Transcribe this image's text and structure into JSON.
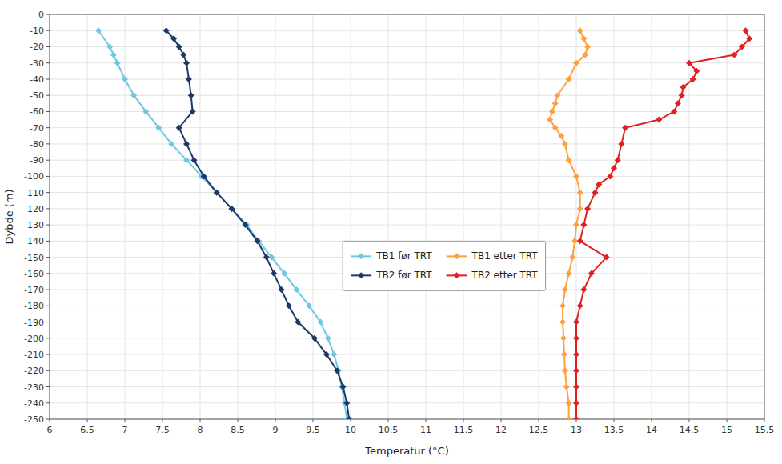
{
  "chart_data": {
    "type": "line",
    "x_label": "Temperatur (°C)",
    "y_label": "Dybde (m)",
    "xlim": [
      6,
      15.5
    ],
    "ylim": [
      -250,
      0
    ],
    "xticks": [
      6,
      6.5,
      7,
      7.5,
      8,
      8.5,
      9,
      9.5,
      10,
      10.5,
      11,
      11.5,
      12,
      12.5,
      13,
      13.5,
      14,
      14.5,
      15,
      15.5
    ],
    "yticks": [
      0,
      -10,
      -20,
      -30,
      -40,
      -50,
      -60,
      -70,
      -80,
      -90,
      -100,
      -110,
      -120,
      -130,
      -140,
      -150,
      -160,
      -170,
      -180,
      -190,
      -200,
      -210,
      -220,
      -230,
      -240,
      -250
    ],
    "grid": true,
    "legend": "center",
    "series": [
      {
        "name": "TB1 før TRT",
        "color": "#70C8E0",
        "marker": "diamond",
        "x": [
          6.65,
          6.8,
          6.85,
          6.9,
          7.0,
          7.12,
          7.28,
          7.45,
          7.62,
          7.82,
          8.02,
          8.22,
          8.42,
          8.62,
          8.78,
          8.95,
          9.12,
          9.28,
          9.45,
          9.6,
          9.7,
          9.78,
          9.84,
          9.88,
          9.92,
          9.95
        ],
        "values": [
          -10,
          -20,
          -25,
          -30,
          -40,
          -50,
          -60,
          -70,
          -80,
          -90,
          -100,
          -110,
          -120,
          -130,
          -140,
          -150,
          -160,
          -170,
          -180,
          -190,
          -200,
          -210,
          -220,
          -230,
          -240,
          -250
        ]
      },
      {
        "name": "TB2 før TRT",
        "color": "#1F3868",
        "marker": "diamond",
        "x": [
          7.55,
          7.65,
          7.72,
          7.78,
          7.82,
          7.85,
          7.88,
          7.9,
          7.72,
          7.82,
          7.92,
          8.05,
          8.22,
          8.42,
          8.6,
          8.76,
          8.88,
          8.98,
          9.08,
          9.18,
          9.3,
          9.52,
          9.68,
          9.82,
          9.9,
          9.95,
          9.98
        ],
        "values": [
          -10,
          -15,
          -20,
          -25,
          -30,
          -40,
          -50,
          -60,
          -70,
          -80,
          -90,
          -100,
          -110,
          -120,
          -130,
          -140,
          -150,
          -160,
          -170,
          -180,
          -190,
          -200,
          -210,
          -220,
          -230,
          -240,
          -250
        ]
      },
      {
        "name": "TB1 etter TRT",
        "color": "#FFA040",
        "marker": "diamond",
        "x": [
          13.05,
          13.1,
          13.15,
          13.12,
          13.0,
          12.9,
          12.75,
          12.72,
          12.68,
          12.65,
          12.72,
          12.8,
          12.85,
          12.9,
          13.0,
          13.05,
          13.05,
          13.0,
          12.98,
          12.95,
          12.9,
          12.85,
          12.82,
          12.82,
          12.83,
          12.84,
          12.85,
          12.87,
          12.9,
          12.9
        ],
        "values": [
          -10,
          -15,
          -20,
          -25,
          -30,
          -40,
          -50,
          -55,
          -60,
          -65,
          -70,
          -75,
          -80,
          -90,
          -100,
          -110,
          -120,
          -130,
          -140,
          -150,
          -160,
          -170,
          -180,
          -190,
          -200,
          -210,
          -220,
          -230,
          -240,
          -250
        ]
      },
      {
        "name": "TB2 etter TRT",
        "color": "#E02020",
        "marker": "diamond",
        "x": [
          15.25,
          15.3,
          15.2,
          15.1,
          14.5,
          14.6,
          14.55,
          14.42,
          14.4,
          14.35,
          14.3,
          14.1,
          13.65,
          13.6,
          13.55,
          13.5,
          13.45,
          13.3,
          13.25,
          13.15,
          13.1,
          13.05,
          13.4,
          13.2,
          13.1,
          13.05,
          13.0,
          13.0,
          13.0,
          13.0,
          13.0,
          13.0,
          13.0
        ],
        "values": [
          -10,
          -15,
          -20,
          -25,
          -30,
          -35,
          -40,
          -45,
          -50,
          -55,
          -60,
          -65,
          -70,
          -80,
          -90,
          -95,
          -100,
          -105,
          -110,
          -120,
          -130,
          -140,
          -150,
          -160,
          -170,
          -180,
          -190,
          -200,
          -210,
          -220,
          -230,
          -240,
          -250
        ]
      }
    ]
  }
}
